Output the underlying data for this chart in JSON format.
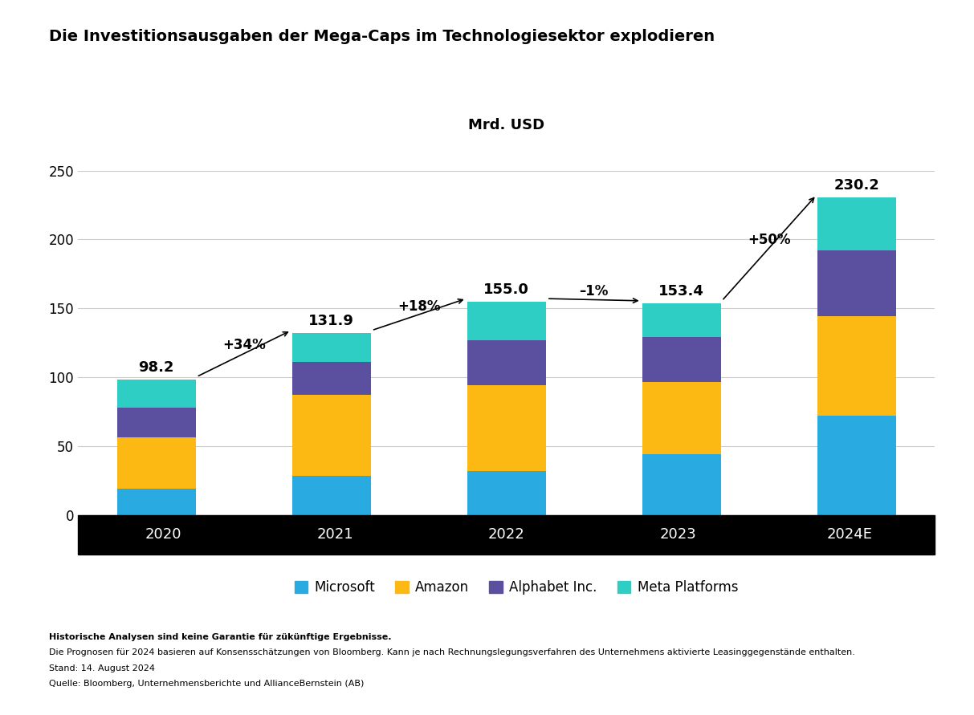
{
  "title": "Die Investitionsausgaben der Mega-Caps im Technologiesektor explodieren",
  "ylabel": "Mrd. USD",
  "categories": [
    "2020",
    "2021",
    "2022",
    "2023",
    "2024E"
  ],
  "totals": [
    98.2,
    131.9,
    155.0,
    153.4,
    230.2
  ],
  "changes": [
    "+34%",
    "+18%",
    "–1%",
    "+50%"
  ],
  "microsoft": [
    19.0,
    28.0,
    31.5,
    44.0,
    72.0
  ],
  "amazon": [
    37.0,
    59.0,
    62.5,
    52.7,
    72.0
  ],
  "alphabet": [
    22.0,
    24.0,
    33.0,
    32.3,
    48.0
  ],
  "meta": [
    20.2,
    20.9,
    28.0,
    24.4,
    38.2
  ],
  "colors": {
    "microsoft": "#29ABE2",
    "amazon": "#FDB913",
    "alphabet": "#5B4FA0",
    "meta": "#2ECEC5"
  },
  "legend_labels": [
    "Microsoft",
    "Amazon",
    "Alphabet Inc.",
    "Meta Platforms"
  ],
  "ylim": [
    0,
    270
  ],
  "yticks": [
    0,
    50,
    100,
    150,
    200,
    250
  ],
  "background_color": "#ffffff",
  "footnote_bold": "Historische Analysen sind keine Garantie für zükünftige Ergebnisse.",
  "footnote_line1": "Die Prognosen für 2024 basieren auf Konsensschätzungen von Bloomberg. Kann je nach Rechnungslegungsverfahren des Unternehmens aktivierte Leasinggegenstände enthalten.",
  "footnote_line2": "Stand: 14. August 2024",
  "footnote_line3": "Quelle: Bloomberg, Unternehmensberichte und AllianceBernstein (AB)"
}
